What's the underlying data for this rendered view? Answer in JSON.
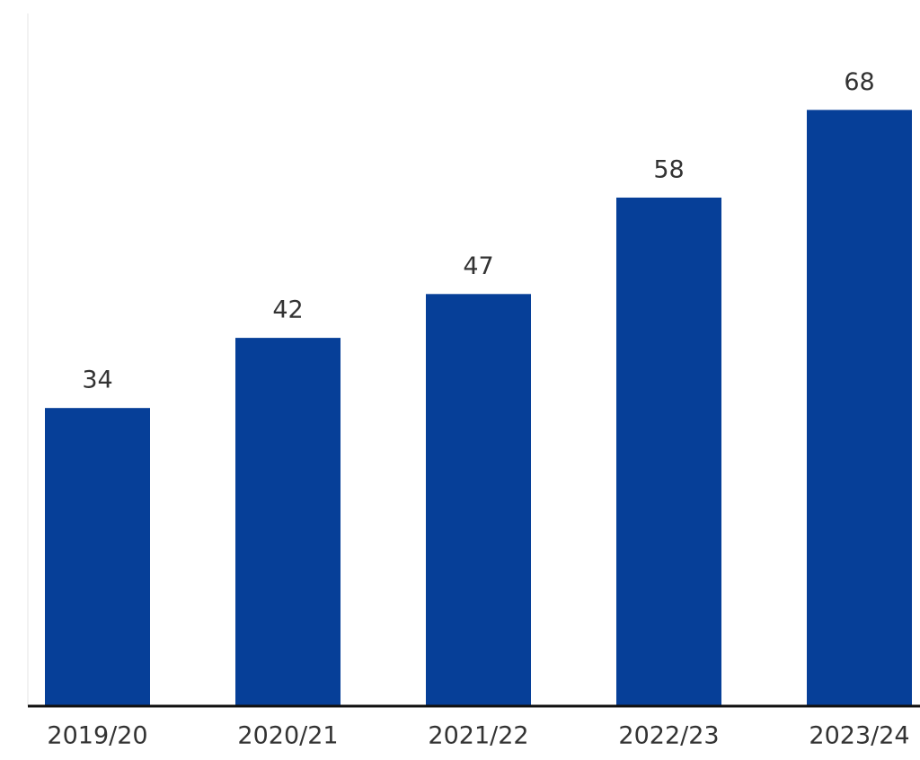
{
  "chart_data": {
    "type": "bar",
    "categories": [
      "2019/20",
      "2020/21",
      "2021/22",
      "2022/23",
      "2023/24"
    ],
    "values": [
      34,
      42,
      47,
      58,
      68
    ],
    "color": "#063f98",
    "ylim": [
      0,
      79
    ]
  }
}
